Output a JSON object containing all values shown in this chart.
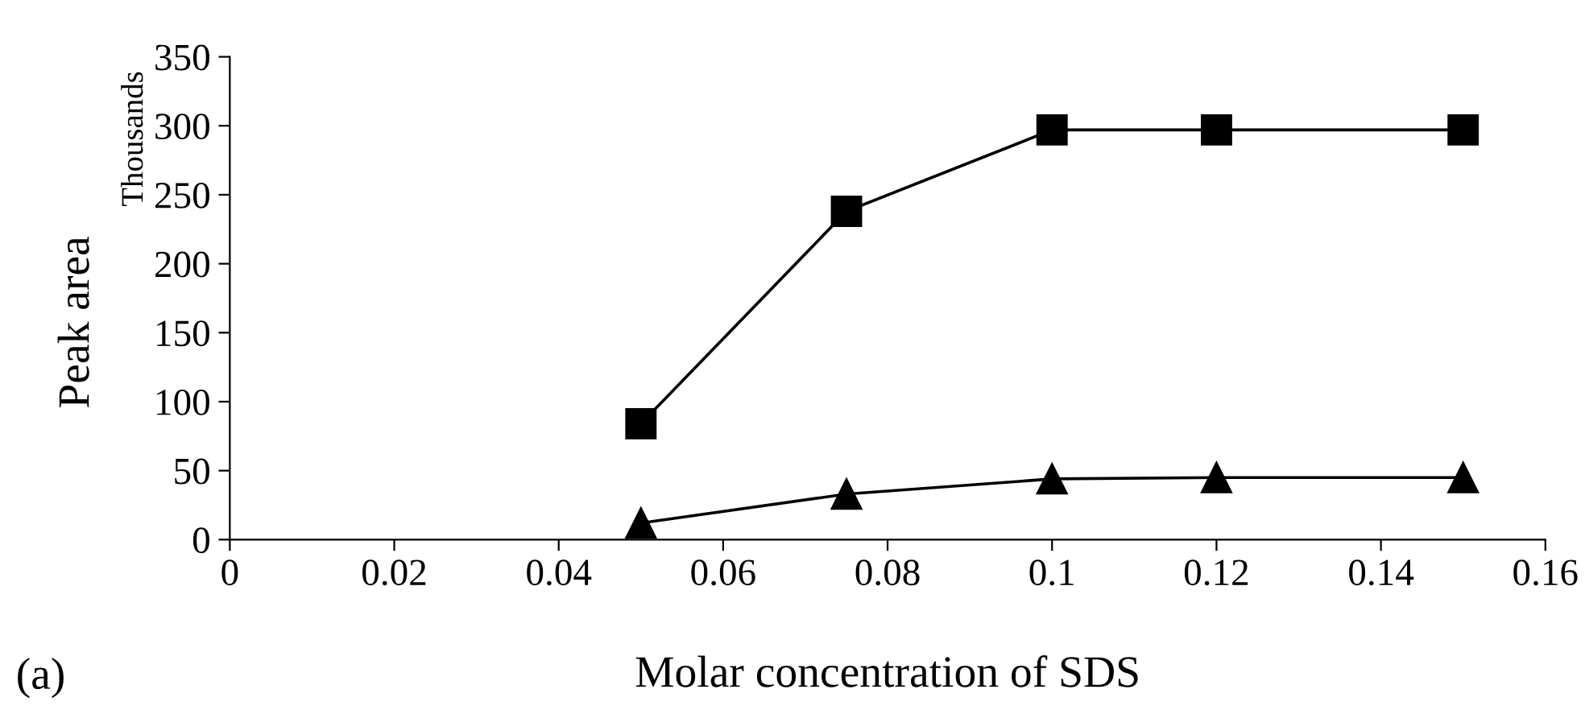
{
  "chart_data": {
    "type": "line",
    "xlabel": "Molar concentration of SDS",
    "ylabel": "Peak area",
    "annotations": [
      "Thousands",
      "(a)"
    ],
    "series": [
      {
        "color": "#000000",
        "marker": "square",
        "x": [
          0.05,
          0.075,
          0.1,
          0.12,
          0.15
        ],
        "values": [
          84,
          238,
          297,
          297,
          297
        ]
      },
      {
        "color": "#000000",
        "marker": "triangle",
        "x": [
          0.05,
          0.075,
          0.1,
          0.12,
          0.15
        ],
        "values": [
          12,
          33,
          44,
          45,
          45
        ]
      }
    ],
    "xlim": [
      0,
      0.16
    ],
    "xticks": [
      0,
      0.02,
      0.04,
      0.06,
      0.08,
      0.1,
      0.12,
      0.14,
      0.16
    ],
    "ylim": [
      0,
      350
    ],
    "yticks": [
      0,
      50,
      100,
      150,
      200,
      250,
      300,
      350
    ],
    "grid": false,
    "legend": false,
    "line_style": "solid"
  }
}
